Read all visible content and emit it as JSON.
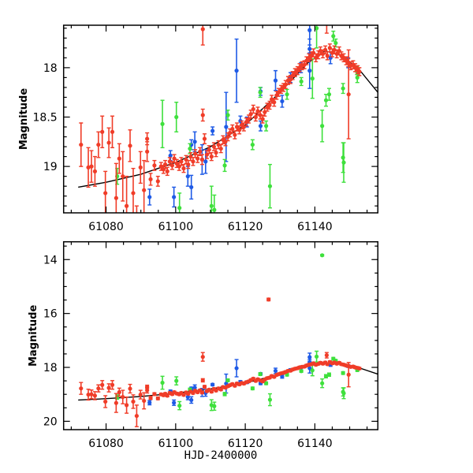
{
  "chart_data": {
    "type": "scatter",
    "title": "",
    "xlabel": "HJD-2400000",
    "ylabel": "Magnitude",
    "xlim": [
      61067.8,
      61158.1
    ],
    "xticks": [
      61080,
      61100,
      61120,
      61140
    ],
    "xtick_labels": [
      "61080",
      "61100",
      "61120",
      "61140"
    ],
    "panels": [
      {
        "ylim": [
          17.57,
          19.47
        ],
        "yticks": [
          18,
          18.5,
          19
        ],
        "ytick_labels": [
          "18",
          "18.5",
          "19"
        ],
        "minor_y": 0.1
      },
      {
        "ylim": [
          13.34,
          20.31
        ],
        "yticks": [
          14,
          16,
          18,
          20
        ],
        "ytick_labels": [
          "14",
          "16",
          "18",
          "20"
        ],
        "minor_y": 0.5
      }
    ],
    "y_inverted": true,
    "grid": false,
    "model_curve": [
      [
        61072,
        19.21
      ],
      [
        61080,
        19.16
      ],
      [
        61090,
        19.08
      ],
      [
        61100,
        18.96
      ],
      [
        61110,
        18.8
      ],
      [
        61120,
        18.58
      ],
      [
        61130,
        18.25
      ],
      [
        61138,
        17.95
      ],
      [
        61143,
        17.83
      ],
      [
        61148,
        17.88
      ],
      [
        61153,
        18.03
      ],
      [
        61158.1,
        18.25
      ]
    ],
    "series": [
      {
        "color": "#1e5ae6",
        "points": [
          [
            61117.5,
            18.03,
            0.32
          ],
          [
            61128.7,
            18.13,
            0.1
          ],
          [
            61124.4,
            18.24,
            0.04
          ],
          [
            61092.5,
            19.31,
            0.08
          ],
          [
            61099.5,
            19.31,
            0.1
          ],
          [
            61103.5,
            19.1,
            0.1
          ],
          [
            61104.5,
            19.21,
            0.12
          ],
          [
            61105.5,
            18.75,
            0.1
          ],
          [
            61110.6,
            18.64,
            0.04
          ],
          [
            61114.5,
            18.6,
            0.35
          ],
          [
            61118.6,
            18.54,
            0.05
          ],
          [
            61108.6,
            18.95,
            0.12
          ],
          [
            61107.6,
            18.93,
            0.15
          ],
          [
            61138.5,
            17.62,
            0.15
          ],
          [
            61138.5,
            18.03,
            0.18
          ],
          [
            61138.5,
            17.81,
            0.1
          ],
          [
            61144.5,
            17.9,
            0.06
          ],
          [
            61130.6,
            18.34,
            0.06
          ],
          [
            61098.5,
            18.89,
            0.05
          ],
          [
            61104.5,
            18.78,
            0.05
          ],
          [
            61124.4,
            18.59,
            0.05
          ],
          [
            61149.6,
            17.95,
            0.05
          ],
          [
            61120.5,
            18.55,
            0.05
          ],
          [
            61133,
            18.1,
            0.05
          ],
          [
            61136,
            18.0,
            0.05
          ]
        ]
      },
      {
        "color": "#3ee03c",
        "points": [
          [
            61096.2,
            18.57,
            0.24
          ],
          [
            61100.2,
            18.5,
            0.15
          ],
          [
            61101.1,
            19.42,
            0.15
          ],
          [
            61110.3,
            19.4,
            0.2
          ],
          [
            61111.1,
            19.44,
            0.15
          ],
          [
            61114.1,
            18.99,
            0.06
          ],
          [
            61127.1,
            19.2,
            0.22
          ],
          [
            61142.1,
            18.59,
            0.16
          ],
          [
            61143.2,
            18.33,
            0.06
          ],
          [
            61144.1,
            18.27,
            0.06
          ],
          [
            61148.1,
            18.21,
            0.05
          ],
          [
            61148.1,
            18.91,
            0.15
          ],
          [
            61148.3,
            18.96,
            0.2
          ],
          [
            61115,
            18.48,
            0.05
          ],
          [
            61124.3,
            18.25,
            0.05
          ],
          [
            61122.1,
            18.78,
            0.05
          ],
          [
            61136.1,
            18.14,
            0.04
          ],
          [
            61139.3,
            18.11,
            0.2
          ],
          [
            61145.3,
            17.68,
            0.05
          ],
          [
            61152.1,
            18.03,
            0.04
          ],
          [
            61152.2,
            18.1,
            0.05
          ],
          [
            61083.2,
            19.1,
            0.08
          ],
          [
            61104.1,
            18.82,
            0.05
          ],
          [
            61132,
            18.27,
            0.05
          ],
          [
            61126,
            18.59,
            0.05
          ],
          [
            61142.1,
            13.84,
            0.03
          ],
          [
            61140.5,
            17.6,
            0.2
          ],
          [
            61146,
            17.75,
            0.04
          ]
        ]
      },
      {
        "color": "#f03c28",
        "points": [
          [
            61072.8,
            18.78,
            0.22
          ],
          [
            61074.9,
            19.01,
            0.2
          ],
          [
            61075.8,
            19.0,
            0.16
          ],
          [
            61076.8,
            19.05,
            0.15
          ],
          [
            61077.8,
            18.78,
            0.13
          ],
          [
            61078.9,
            18.65,
            0.16
          ],
          [
            61079.8,
            19.27,
            0.22
          ],
          [
            61080.8,
            18.76,
            0.15
          ],
          [
            61081.8,
            18.65,
            0.16
          ],
          [
            61082.9,
            19.32,
            0.35
          ],
          [
            61083.8,
            18.92,
            0.15
          ],
          [
            61084.8,
            19.1,
            0.25
          ],
          [
            61085.9,
            19.4,
            0.3
          ],
          [
            61086.9,
            18.79,
            0.16
          ],
          [
            61087.8,
            19.27,
            0.25
          ],
          [
            61088.8,
            19.8,
            0.4
          ],
          [
            61089.9,
            19.01,
            0.16
          ],
          [
            61090.9,
            19.24,
            0.3
          ],
          [
            61091.8,
            18.72,
            0.06
          ],
          [
            61091.8,
            18.85,
            0.1
          ],
          [
            61092.8,
            19.13,
            0.06
          ],
          [
            61093.9,
            18.99,
            0.05
          ],
          [
            61094.9,
            19.15,
            0.05
          ],
          [
            61107.8,
            17.61,
            0.16
          ],
          [
            61107.8,
            18.48,
            0.06
          ],
          [
            61126.7,
            15.48,
            0.05
          ],
          [
            61149.7,
            18.27,
            0.45
          ],
          [
            61143.4,
            17.55,
            0.1
          ],
          [
            61095.8,
            19.0,
            0.04
          ],
          [
            61096.5,
            19.03,
            0.04
          ],
          [
            61097,
            18.98,
            0.04
          ],
          [
            61097.6,
            19.05,
            0.04
          ],
          [
            61098.3,
            18.95,
            0.04
          ],
          [
            61099,
            18.99,
            0.04
          ],
          [
            61099.6,
            18.92,
            0.04
          ],
          [
            61100.3,
            18.97,
            0.04
          ],
          [
            61101,
            19.0,
            0.04
          ],
          [
            61101.6,
            18.95,
            0.04
          ],
          [
            61102.3,
            19.02,
            0.04
          ],
          [
            61103,
            18.93,
            0.04
          ],
          [
            61103.6,
            18.98,
            0.04
          ],
          [
            61104.3,
            18.9,
            0.04
          ],
          [
            61105,
            18.95,
            0.04
          ],
          [
            61105.6,
            18.87,
            0.04
          ],
          [
            61106.3,
            18.92,
            0.04
          ],
          [
            61107,
            18.85,
            0.04
          ],
          [
            61107.6,
            18.93,
            0.05
          ],
          [
            61108.3,
            18.72,
            0.05
          ],
          [
            61109,
            18.88,
            0.04
          ],
          [
            61109.6,
            18.83,
            0.04
          ],
          [
            61110.3,
            18.9,
            0.04
          ],
          [
            61111,
            18.8,
            0.04
          ],
          [
            61111.6,
            18.86,
            0.04
          ],
          [
            61112.3,
            18.78,
            0.04
          ],
          [
            61113,
            18.82,
            0.04
          ],
          [
            61113.6,
            18.73,
            0.04
          ],
          [
            61114.3,
            18.75,
            0.04
          ],
          [
            61115,
            18.7,
            0.04
          ],
          [
            61115.6,
            18.66,
            0.04
          ],
          [
            61116.3,
            18.62,
            0.04
          ],
          [
            61117,
            18.68,
            0.04
          ],
          [
            61117.6,
            18.6,
            0.04
          ],
          [
            61118.3,
            18.63,
            0.04
          ],
          [
            61119,
            18.58,
            0.04
          ],
          [
            61119.6,
            18.6,
            0.04
          ],
          [
            61120.3,
            18.55,
            0.04
          ],
          [
            61121,
            18.52,
            0.04
          ],
          [
            61121.6,
            18.47,
            0.04
          ],
          [
            61122.3,
            18.42,
            0.04
          ],
          [
            61123,
            18.5,
            0.04
          ],
          [
            61123.6,
            18.44,
            0.04
          ],
          [
            61124.3,
            18.48,
            0.04
          ],
          [
            61125,
            18.52,
            0.04
          ],
          [
            61125.6,
            18.45,
            0.04
          ],
          [
            61126.3,
            18.4,
            0.04
          ],
          [
            61127,
            18.38,
            0.04
          ],
          [
            61127.6,
            18.32,
            0.04
          ],
          [
            61128.3,
            18.35,
            0.04
          ],
          [
            61129,
            18.28,
            0.04
          ],
          [
            61129.6,
            18.25,
            0.04
          ],
          [
            61130.3,
            18.22,
            0.04
          ],
          [
            61131,
            18.2,
            0.04
          ],
          [
            61131.6,
            18.17,
            0.04
          ],
          [
            61132.3,
            18.13,
            0.04
          ],
          [
            61133,
            18.12,
            0.04
          ],
          [
            61133.6,
            18.08,
            0.04
          ],
          [
            61134.3,
            18.05,
            0.04
          ],
          [
            61135,
            18.03,
            0.04
          ],
          [
            61135.6,
            18.0,
            0.04
          ],
          [
            61136.3,
            17.98,
            0.04
          ],
          [
            61137,
            17.97,
            0.04
          ],
          [
            61137.6,
            17.93,
            0.04
          ],
          [
            61138.3,
            17.9,
            0.04
          ],
          [
            61139,
            17.88,
            0.04
          ],
          [
            61139.6,
            17.85,
            0.04
          ],
          [
            61140.3,
            17.9,
            0.04
          ],
          [
            61141,
            17.87,
            0.04
          ],
          [
            61141.6,
            17.83,
            0.04
          ],
          [
            61142.3,
            17.86,
            0.04
          ],
          [
            61143,
            17.82,
            0.04
          ],
          [
            61143.6,
            17.88,
            0.04
          ],
          [
            61144.3,
            17.8,
            0.04
          ],
          [
            61145,
            17.85,
            0.04
          ],
          [
            61145.6,
            17.82,
            0.04
          ],
          [
            61146.3,
            17.86,
            0.04
          ],
          [
            61147,
            17.83,
            0.04
          ],
          [
            61147.6,
            17.88,
            0.04
          ],
          [
            61148.3,
            17.9,
            0.04
          ],
          [
            61149,
            17.93,
            0.04
          ],
          [
            61149.6,
            17.95,
            0.04
          ],
          [
            61150.3,
            17.98,
            0.04
          ],
          [
            61151,
            17.97,
            0.04
          ],
          [
            61151.6,
            18.0,
            0.04
          ],
          [
            61152.3,
            18.02,
            0.04
          ],
          [
            61152.8,
            18.04,
            0.04
          ]
        ]
      }
    ]
  }
}
